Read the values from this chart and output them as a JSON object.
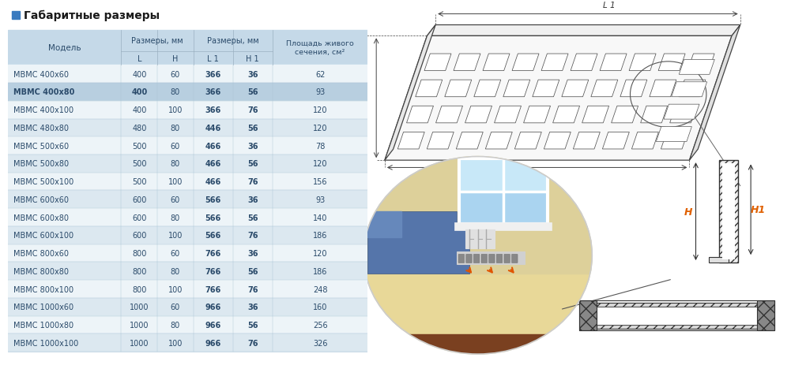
{
  "title": "Габаритные размеры",
  "title_icon_color": "#3a7bbf",
  "background_color": "#ffffff",
  "table_header_bg": "#c5d9e8",
  "table_row_bg_alt": "#dce8f0",
  "table_row_bg_norm": "#edf4f8",
  "table_highlight_bg": "#b8cfe0",
  "table_text_color": "#2a4a6a",
  "rows": [
    [
      "МВМС 400х60",
      "400",
      "60",
      "366",
      "36",
      "62",
      false
    ],
    [
      "МВМС 400х80",
      "400",
      "80",
      "366",
      "56",
      "93",
      true
    ],
    [
      "МВМС 400х100",
      "400",
      "100",
      "366",
      "76",
      "120",
      false
    ],
    [
      "МВМС 480х80",
      "480",
      "80",
      "446",
      "56",
      "120",
      true
    ],
    [
      "МВМС 500х60",
      "500",
      "60",
      "466",
      "36",
      "78",
      false
    ],
    [
      "МВМС 500х80",
      "500",
      "80",
      "466",
      "56",
      "120",
      true
    ],
    [
      "МВМС 500х100",
      "500",
      "100",
      "466",
      "76",
      "156",
      false
    ],
    [
      "МВМС 600х60",
      "600",
      "60",
      "566",
      "36",
      "93",
      true
    ],
    [
      "МВМС 600х80",
      "600",
      "80",
      "566",
      "56",
      "140",
      false
    ],
    [
      "МВМС 600х100",
      "600",
      "100",
      "566",
      "76",
      "186",
      true
    ],
    [
      "МВМС 800х60",
      "800",
      "60",
      "766",
      "36",
      "120",
      false
    ],
    [
      "МВМС 800х80",
      "800",
      "80",
      "766",
      "56",
      "186",
      true
    ],
    [
      "МВМС 800х100",
      "800",
      "100",
      "766",
      "76",
      "248",
      false
    ],
    [
      "МВМС 1000х60",
      "1000",
      "60",
      "966",
      "36",
      "160",
      true
    ],
    [
      "МВМС 1000х80",
      "1000",
      "80",
      "966",
      "56",
      "256",
      false
    ],
    [
      "МВМС 1000х100",
      "1000",
      "100",
      "966",
      "76",
      "326",
      true
    ]
  ],
  "highlight_row": 1
}
